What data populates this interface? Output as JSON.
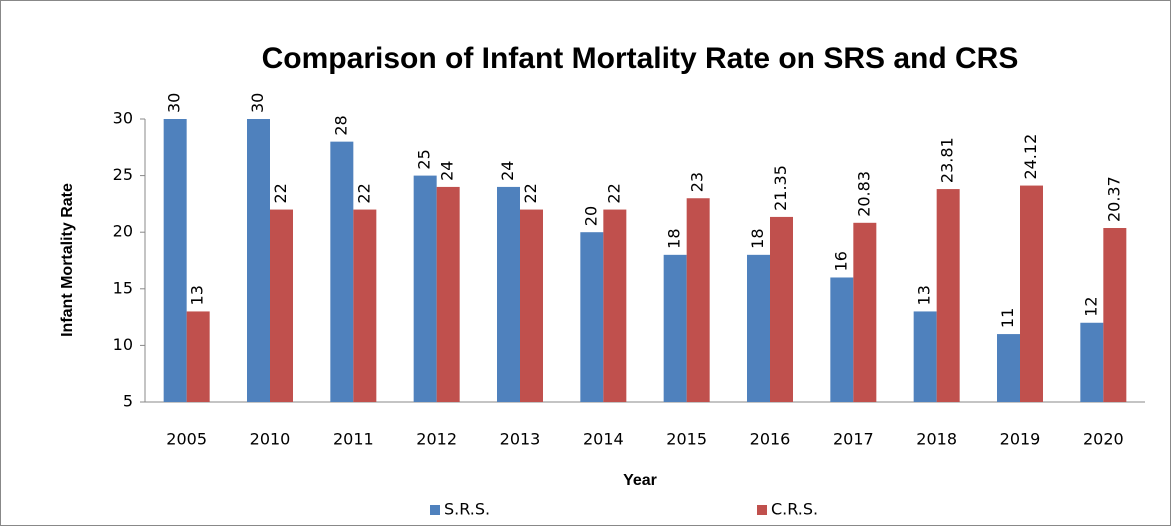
{
  "chart_data": {
    "type": "bar",
    "title": "Comparison of Infant Mortality Rate on SRS and CRS",
    "x_label": "Year",
    "y_label": "Infant Mortality Rate",
    "categories": [
      "2005",
      "2010",
      "2011",
      "2012",
      "2013",
      "2014",
      "2015",
      "2016",
      "2017",
      "2018",
      "2019",
      "2020"
    ],
    "series": [
      {
        "name": "S.R.S.",
        "color": "#4f81bd",
        "values": [
          30,
          30,
          28,
          25,
          24,
          20,
          18,
          18,
          16,
          13,
          11,
          12
        ]
      },
      {
        "name": "C.R.S.",
        "color": "#c0504d",
        "values": [
          13,
          22,
          22,
          24,
          22,
          22,
          23,
          21.35,
          20.83,
          23.81,
          24.12,
          20.37
        ]
      }
    ],
    "ylim": [
      5,
      30
    ],
    "yticks": [
      5,
      10,
      15,
      20,
      25,
      30
    ],
    "grid": false,
    "legend": "bottom"
  }
}
